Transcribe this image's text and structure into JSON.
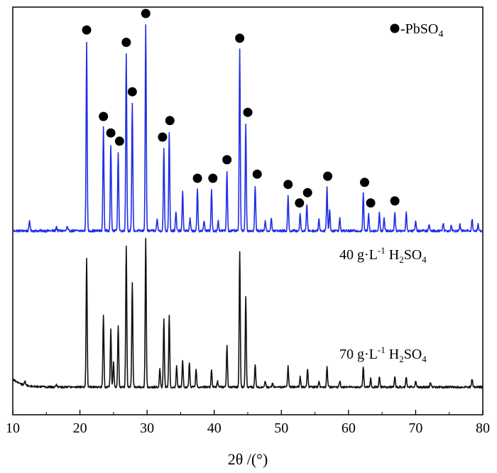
{
  "chart_data": {
    "type": "line",
    "title": "",
    "xlabel": "2θ /(°)",
    "ylabel": "",
    "xlim": [
      10,
      80
    ],
    "xticks": [
      "10",
      "20",
      "30",
      "40",
      "50",
      "60",
      "70",
      "80"
    ],
    "y_ticks_shown": false,
    "grid": false,
    "legend": {
      "placement": "top-right",
      "marker": "filled-circle",
      "text": "-PbSO",
      "text_sub": "4"
    },
    "series": [
      {
        "label_parts": [
          "40 g·L",
          "-1",
          " H",
          "2",
          "SO",
          "4"
        ],
        "color": "#1f2ee6",
        "baseline": 0.18,
        "noise": 0.006,
        "peaks": [
          [
            12.5,
            0.05
          ],
          [
            16.5,
            0.02
          ],
          [
            18.1,
            0.02
          ],
          [
            21.0,
            0.92
          ],
          [
            23.5,
            0.5
          ],
          [
            24.6,
            0.42
          ],
          [
            25.7,
            0.38
          ],
          [
            26.9,
            0.86
          ],
          [
            27.8,
            0.62
          ],
          [
            29.8,
            1.0
          ],
          [
            31.5,
            0.06
          ],
          [
            32.5,
            0.4
          ],
          [
            33.3,
            0.48
          ],
          [
            34.3,
            0.09
          ],
          [
            35.3,
            0.19
          ],
          [
            36.4,
            0.06
          ],
          [
            37.5,
            0.2
          ],
          [
            38.5,
            0.05
          ],
          [
            39.6,
            0.2
          ],
          [
            40.6,
            0.05
          ],
          [
            41.9,
            0.29
          ],
          [
            43.8,
            0.88
          ],
          [
            44.7,
            0.52
          ],
          [
            46.1,
            0.22
          ],
          [
            47.6,
            0.05
          ],
          [
            48.5,
            0.06
          ],
          [
            51.0,
            0.17
          ],
          [
            52.8,
            0.08
          ],
          [
            53.8,
            0.13
          ],
          [
            55.6,
            0.06
          ],
          [
            56.8,
            0.21
          ],
          [
            57.2,
            0.1
          ],
          [
            58.7,
            0.06
          ],
          [
            62.2,
            0.18
          ],
          [
            63.0,
            0.08
          ],
          [
            64.6,
            0.09
          ],
          [
            65.3,
            0.06
          ],
          [
            66.9,
            0.09
          ],
          [
            68.6,
            0.09
          ],
          [
            70.0,
            0.05
          ],
          [
            72.0,
            0.03
          ],
          [
            74.1,
            0.04
          ],
          [
            75.3,
            0.03
          ],
          [
            76.6,
            0.03
          ],
          [
            78.4,
            0.06
          ],
          [
            79.3,
            0.03
          ]
        ],
        "markers": [
          21.0,
          23.5,
          24.6,
          25.9,
          26.9,
          27.8,
          29.8,
          32.3,
          33.4,
          37.5,
          39.8,
          41.9,
          43.8,
          45.0,
          46.4,
          51.0,
          52.7,
          53.9,
          56.9,
          62.4,
          63.3,
          66.9
        ]
      },
      {
        "label_parts": [
          "70 g·L",
          "-1",
          " H",
          "2",
          "SO",
          "4"
        ],
        "color": "#111111",
        "baseline": 0.022,
        "noise": 0.005,
        "peaks": [
          [
            11.8,
            0.02
          ],
          [
            16.5,
            0.01
          ],
          [
            21.0,
            0.63
          ],
          [
            23.5,
            0.35
          ],
          [
            24.6,
            0.28
          ],
          [
            25.0,
            0.12
          ],
          [
            25.7,
            0.3
          ],
          [
            26.9,
            0.68
          ],
          [
            27.8,
            0.51
          ],
          [
            29.8,
            0.72
          ],
          [
            31.9,
            0.09
          ],
          [
            32.5,
            0.33
          ],
          [
            33.3,
            0.35
          ],
          [
            34.4,
            0.1
          ],
          [
            35.3,
            0.13
          ],
          [
            36.3,
            0.12
          ],
          [
            37.3,
            0.09
          ],
          [
            39.6,
            0.08
          ],
          [
            40.5,
            0.03
          ],
          [
            41.9,
            0.2
          ],
          [
            43.8,
            0.66
          ],
          [
            44.7,
            0.44
          ],
          [
            46.1,
            0.11
          ],
          [
            47.6,
            0.03
          ],
          [
            48.7,
            0.02
          ],
          [
            51.0,
            0.1
          ],
          [
            52.8,
            0.05
          ],
          [
            53.9,
            0.09
          ],
          [
            55.6,
            0.03
          ],
          [
            56.8,
            0.1
          ],
          [
            58.7,
            0.03
          ],
          [
            62.2,
            0.1
          ],
          [
            63.3,
            0.04
          ],
          [
            64.6,
            0.05
          ],
          [
            66.9,
            0.05
          ],
          [
            68.6,
            0.05
          ],
          [
            70.0,
            0.03
          ],
          [
            72.2,
            0.02
          ],
          [
            78.4,
            0.04
          ]
        ],
        "low_angle_bump": true
      }
    ]
  }
}
